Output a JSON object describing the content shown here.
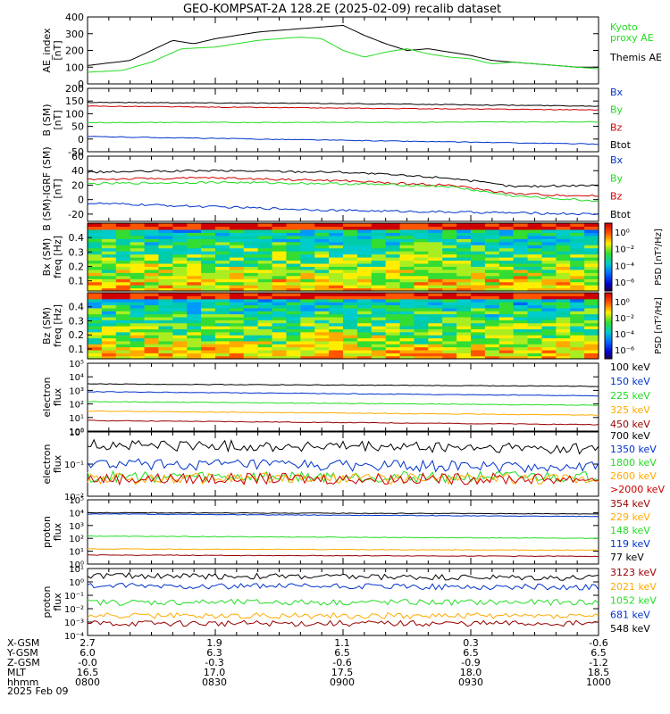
{
  "title": "GEO-KOMPSAT-2A 128.2E (2025-02-09) recalib dataset",
  "colors": {
    "black": "#000000",
    "blue": "#0033cc",
    "green": "#22dd22",
    "red": "#cc0000",
    "orange": "#ffaa00",
    "darkred": "#990000"
  },
  "ephemeris": {
    "row_labels": [
      "X-GSM",
      "Y-GSM",
      "Z-GSM",
      "MLT",
      "hhmm",
      "2025 Feb 09"
    ],
    "columns": [
      [
        "2.7",
        "6.0",
        "-0.0",
        "16.5",
        "0800"
      ],
      [
        "1.9",
        "6.3",
        "-0.3",
        "17.0",
        "0830"
      ],
      [
        "1.1",
        "6.5",
        "-0.6",
        "17.5",
        "0900"
      ],
      [
        "0.3",
        "6.5",
        "-0.9",
        "18.0",
        "0930"
      ],
      [
        "-0.6",
        "6.5",
        "-1.2",
        "18.5",
        "1000"
      ]
    ]
  },
  "chart_data": [
    {
      "type": "line",
      "ylabel": "AE_index\n[nT]",
      "ylim": [
        0,
        400
      ],
      "yticks": [
        "0",
        "100",
        "200",
        "300",
        "400"
      ],
      "legend": [
        {
          "name": "Kyoto\nproxy AE",
          "color": "#22dd22"
        },
        {
          "name": "Themis AE",
          "color": "#000000"
        }
      ],
      "x_range": [
        0,
        120
      ],
      "series": [
        {
          "name": "Themis AE",
          "color": "#000000",
          "x": [
            0,
            10,
            20,
            25,
            30,
            40,
            50,
            60,
            65,
            70,
            75,
            80,
            85,
            90,
            95,
            100,
            105,
            110,
            115,
            120
          ],
          "values": [
            110,
            140,
            260,
            240,
            270,
            310,
            330,
            350,
            290,
            240,
            200,
            210,
            190,
            170,
            140,
            130,
            120,
            110,
            100,
            100
          ]
        },
        {
          "name": "Kyoto proxy AE",
          "color": "#22dd22",
          "x": [
            0,
            8,
            15,
            22,
            30,
            40,
            50,
            55,
            60,
            65,
            70,
            75,
            80,
            85,
            90,
            95,
            100,
            105,
            110,
            115,
            120
          ],
          "values": [
            70,
            80,
            130,
            210,
            220,
            260,
            280,
            270,
            200,
            160,
            190,
            210,
            180,
            160,
            150,
            120,
            130,
            120,
            110,
            100,
            90
          ]
        }
      ]
    },
    {
      "type": "line",
      "ylabel": "B (SM)\n[nT]",
      "ylim": [
        -50,
        200
      ],
      "yticks": [
        "-50",
        "0",
        "50",
        "100",
        "150",
        "200"
      ],
      "legend": [
        {
          "name": "Bx",
          "color": "#0033cc"
        },
        {
          "name": "By",
          "color": "#22dd22"
        },
        {
          "name": "Bz",
          "color": "#cc0000"
        },
        {
          "name": "Btot",
          "color": "#000000"
        }
      ],
      "series": [
        {
          "name": "Btot",
          "color": "#000000",
          "x": [
            0,
            60,
            120
          ],
          "values": [
            145,
            140,
            130
          ]
        },
        {
          "name": "Bz",
          "color": "#cc0000",
          "x": [
            0,
            60,
            120
          ],
          "values": [
            130,
            122,
            115
          ]
        },
        {
          "name": "By",
          "color": "#22dd22",
          "x": [
            0,
            60,
            120
          ],
          "values": [
            65,
            66,
            68
          ]
        },
        {
          "name": "Bx",
          "color": "#0033cc",
          "x": [
            0,
            60,
            120
          ],
          "values": [
            10,
            -5,
            -20
          ]
        }
      ]
    },
    {
      "type": "line",
      "ylabel": "B (SM)-IGRF (SM)\n[nT]",
      "ylim": [
        -30,
        60
      ],
      "yticks": [
        "-20",
        "0",
        "20",
        "40",
        "60"
      ],
      "legend": [
        {
          "name": "Bx",
          "color": "#0033cc"
        },
        {
          "name": "By",
          "color": "#22dd22"
        },
        {
          "name": "Bz",
          "color": "#cc0000"
        },
        {
          "name": "Btot",
          "color": "#000000"
        }
      ],
      "series": [
        {
          "name": "Btot",
          "color": "#000000",
          "x": [
            0,
            30,
            60,
            75,
            85,
            100,
            120
          ],
          "values": [
            38,
            40,
            38,
            33,
            30,
            18,
            20
          ]
        },
        {
          "name": "Bz",
          "color": "#cc0000",
          "x": [
            0,
            30,
            60,
            75,
            85,
            100,
            120
          ],
          "values": [
            28,
            30,
            26,
            22,
            20,
            8,
            5
          ]
        },
        {
          "name": "By",
          "color": "#22dd22",
          "x": [
            0,
            30,
            60,
            75,
            85,
            100,
            120
          ],
          "values": [
            22,
            24,
            22,
            20,
            18,
            5,
            -2
          ]
        },
        {
          "name": "Bx",
          "color": "#0033cc",
          "x": [
            0,
            60,
            120
          ],
          "values": [
            -5,
            -15,
            -20
          ]
        }
      ]
    },
    {
      "type": "heatmap",
      "ylabel": "Bx (SM)\nfreq [Hz]",
      "yticks": [
        "0.1",
        "0.2",
        "0.3",
        "0.4"
      ],
      "colorbar_label": "PSD [nT²/Hz]",
      "colorbar_ticks": [
        "10⁰",
        "10⁻²",
        "10⁻⁴",
        "10⁻⁶"
      ]
    },
    {
      "type": "heatmap",
      "ylabel": "Bz (SM)\nfreq [Hz]",
      "yticks": [
        "0.1",
        "0.2",
        "0.3",
        "0.4"
      ],
      "colorbar_label": "PSD [nT²/Hz]",
      "colorbar_ticks": [
        "10⁰",
        "10⁻²",
        "10⁻⁴",
        "10⁻⁶"
      ]
    },
    {
      "type": "line",
      "ylabel": "electron\nflux",
      "log": true,
      "yticks": [
        "10⁰",
        "10¹",
        "10²",
        "10³",
        "10⁴",
        "10⁵"
      ],
      "legend": [
        {
          "name": "100 keV",
          "color": "#000000"
        },
        {
          "name": "150 keV",
          "color": "#0033cc"
        },
        {
          "name": "225 keV",
          "color": "#22dd22"
        },
        {
          "name": "325 keV",
          "color": "#ffaa00"
        },
        {
          "name": "450 keV",
          "color": "#990000"
        }
      ],
      "series": [
        {
          "name": "100 keV",
          "color": "#000000",
          "x": [
            0,
            120
          ],
          "values": [
            3000,
            2000
          ]
        },
        {
          "name": "150 keV",
          "color": "#0033cc",
          "x": [
            0,
            120
          ],
          "values": [
            800,
            400
          ]
        },
        {
          "name": "225 keV",
          "color": "#22dd22",
          "x": [
            0,
            120
          ],
          "values": [
            150,
            80
          ]
        },
        {
          "name": "325 keV",
          "color": "#ffaa00",
          "x": [
            0,
            120
          ],
          "values": [
            30,
            15
          ]
        },
        {
          "name": "450 keV",
          "color": "#990000",
          "x": [
            0,
            120
          ],
          "values": [
            6,
            3
          ]
        }
      ]
    },
    {
      "type": "line",
      "ylabel": "electron\nflux",
      "log": true,
      "yticks": [
        "10⁻²",
        "10⁻¹",
        "10⁰"
      ],
      "legend": [
        {
          "name": "700 keV",
          "color": "#000000"
        },
        {
          "name": "1350 keV",
          "color": "#0033cc"
        },
        {
          "name": "1800 keV",
          "color": "#22dd22"
        },
        {
          "name": "2600 keV",
          "color": "#ffaa00"
        },
        {
          "name": ">2000 keV",
          "color": "#cc0000"
        }
      ],
      "series": [
        {
          "name": "700 keV",
          "color": "#000000",
          "x": [
            0,
            120
          ],
          "values": [
            0.4,
            0.3
          ]
        },
        {
          "name": "1350 keV",
          "color": "#0033cc",
          "x": [
            0,
            120
          ],
          "values": [
            0.1,
            0.08
          ]
        },
        {
          "name": "1800 keV",
          "color": "#22dd22",
          "x": [
            0,
            120
          ],
          "values": [
            0.04,
            0.04
          ]
        },
        {
          "name": "2600 keV",
          "color": "#ffaa00",
          "x": [
            0,
            120
          ],
          "values": [
            0.035,
            0.035
          ]
        },
        {
          "name": ">2000 keV",
          "color": "#cc0000",
          "x": [
            0,
            120
          ],
          "values": [
            0.035,
            0.035
          ]
        }
      ]
    },
    {
      "type": "line",
      "ylabel": "proton\nflux",
      "log": true,
      "yticks": [
        "10⁰",
        "10¹",
        "10²",
        "10³",
        "10⁴",
        "10⁵"
      ],
      "legend": [
        {
          "name": "354 keV",
          "color": "#990000"
        },
        {
          "name": "229 keV",
          "color": "#ffaa00"
        },
        {
          "name": "148 keV",
          "color": "#22dd22"
        },
        {
          "name": "119 keV",
          "color": "#0033cc"
        },
        {
          "name": "77 keV",
          "color": "#000000"
        }
      ],
      "series": [
        {
          "name": "77 keV",
          "color": "#000000",
          "x": [
            0,
            120
          ],
          "values": [
            10000,
            8000
          ]
        },
        {
          "name": "119 keV",
          "color": "#0033cc",
          "x": [
            0,
            120
          ],
          "values": [
            8000,
            5000
          ]
        },
        {
          "name": "148 keV",
          "color": "#22dd22",
          "x": [
            0,
            120
          ],
          "values": [
            150,
            100
          ]
        },
        {
          "name": "229 keV",
          "color": "#ffaa00",
          "x": [
            0,
            120
          ],
          "values": [
            15,
            12
          ]
        },
        {
          "name": "354 keV",
          "color": "#990000",
          "x": [
            0,
            120
          ],
          "values": [
            5,
            4
          ]
        }
      ]
    },
    {
      "type": "line",
      "ylabel": "proton\nflux",
      "log": true,
      "yticks": [
        "10⁻⁴",
        "10⁻³",
        "10⁻²",
        "10⁻¹",
        "10⁰",
        "10¹"
      ],
      "legend": [
        {
          "name": "3123 keV",
          "color": "#990000"
        },
        {
          "name": "2021 keV",
          "color": "#ffaa00"
        },
        {
          "name": "1052 keV",
          "color": "#22dd22"
        },
        {
          "name": "681 keV",
          "color": "#0033cc"
        },
        {
          "name": "548 keV",
          "color": "#000000"
        }
      ],
      "series": [
        {
          "name": "548 keV",
          "color": "#000000",
          "x": [
            0,
            120
          ],
          "values": [
            3,
            2
          ]
        },
        {
          "name": "681 keV",
          "color": "#0033cc",
          "x": [
            0,
            120
          ],
          "values": [
            0.5,
            0.4
          ]
        },
        {
          "name": "1052 keV",
          "color": "#22dd22",
          "x": [
            0,
            120
          ],
          "values": [
            0.03,
            0.03
          ]
        },
        {
          "name": "2021 keV",
          "color": "#ffaa00",
          "x": [
            0,
            120
          ],
          "values": [
            0.003,
            0.003
          ]
        },
        {
          "name": "3123 keV",
          "color": "#990000",
          "x": [
            0,
            120
          ],
          "values": [
            0.0008,
            0.0008
          ]
        }
      ]
    }
  ]
}
